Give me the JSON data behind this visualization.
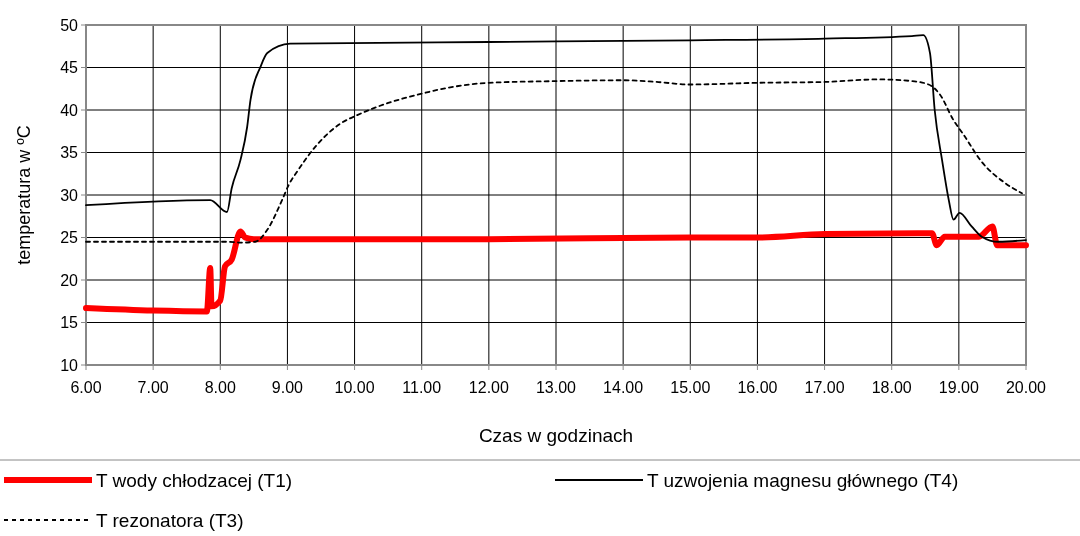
{
  "chart_data": {
    "type": "line",
    "xlabel": "Czas w godzinach",
    "ylabel": "temperatura w ºC",
    "xlim": [
      6,
      20
    ],
    "ylim": [
      10,
      50
    ],
    "xticks": [
      {
        "value": 6,
        "label": "6.00"
      },
      {
        "value": 7,
        "label": "7.00"
      },
      {
        "value": 8,
        "label": "8.00"
      },
      {
        "value": 9,
        "label": "9.00"
      },
      {
        "value": 10,
        "label": "10.00"
      },
      {
        "value": 11,
        "label": "11.00"
      },
      {
        "value": 12,
        "label": "12.00"
      },
      {
        "value": 13,
        "label": "13.00"
      },
      {
        "value": 14,
        "label": "14.00"
      },
      {
        "value": 15,
        "label": "15.00"
      },
      {
        "value": 16,
        "label": "16.00"
      },
      {
        "value": 17,
        "label": "17.00"
      },
      {
        "value": 18,
        "label": "18.00"
      },
      {
        "value": 19,
        "label": "19.00"
      },
      {
        "value": 20,
        "label": "20.00"
      }
    ],
    "yticks": [
      10,
      15,
      20,
      25,
      30,
      35,
      40,
      45,
      50
    ],
    "grid": true,
    "legend": "bottom",
    "series": [
      {
        "name": "T wody chłodzacej (T1)",
        "color": "#ff0000",
        "line_style": "solid",
        "x": [
          6,
          7,
          7.8,
          7.85,
          7.87,
          8,
          8.07,
          8.17,
          8.3,
          8.37,
          8.5,
          10,
          12,
          15,
          16,
          17,
          18.4,
          18.6,
          18.67,
          18.79,
          19.3,
          19.5,
          19.57,
          20
        ],
        "values": [
          16.7,
          16.4,
          16.3,
          21.4,
          16.9,
          17.6,
          21.6,
          22.4,
          25.7,
          25,
          24.8,
          24.8,
          24.8,
          25,
          25,
          25.4,
          25.5,
          25.5,
          24.1,
          25.1,
          25.1,
          26.3,
          24.1,
          24.1
        ]
      },
      {
        "name": "T uzwojenia magnesu głównego (T4)",
        "color": "#000000",
        "line_style": "solid",
        "x": [
          6,
          7.85,
          8.1,
          8.17,
          8.3,
          8.4,
          8.45,
          8.6,
          8.7,
          9.04,
          12,
          15,
          17,
          18.3,
          18.47,
          18.57,
          18.64,
          18.75,
          18.85,
          18.92,
          19.01,
          19.19,
          19.34,
          19.59,
          20
        ],
        "values": [
          28.8,
          29.4,
          28,
          30.8,
          34.1,
          38,
          41.2,
          45.1,
          46.7,
          47.8,
          48,
          48.2,
          48.4,
          48.7,
          48.8,
          46.7,
          40,
          34.1,
          29.4,
          27.1,
          27.9,
          26.3,
          25.1,
          24.5,
          24.7
        ]
      },
      {
        "name": "T rezonatora (T3)",
        "color": "#000000",
        "line_style": "dashed",
        "x": [
          6,
          8.1,
          8.3,
          8.52,
          8.7,
          8.92,
          9.02,
          9.14,
          9.44,
          9.79,
          10.04,
          10.49,
          10.94,
          11.38,
          12,
          13,
          14,
          14.5,
          15,
          16,
          17,
          17.8,
          18.3,
          18.55,
          18.72,
          18.92,
          19.07,
          19.34,
          19.69,
          19.94
        ],
        "values": [
          24.5,
          24.5,
          24.4,
          24.5,
          25.9,
          29.4,
          31.2,
          32.7,
          35.9,
          38.4,
          39.4,
          40.8,
          41.8,
          42.6,
          43.2,
          43.4,
          43.5,
          43.3,
          43,
          43.2,
          43.3,
          43.6,
          43.4,
          43,
          41.8,
          38.8,
          37.1,
          33.9,
          31.4,
          30.2
        ]
      }
    ]
  }
}
